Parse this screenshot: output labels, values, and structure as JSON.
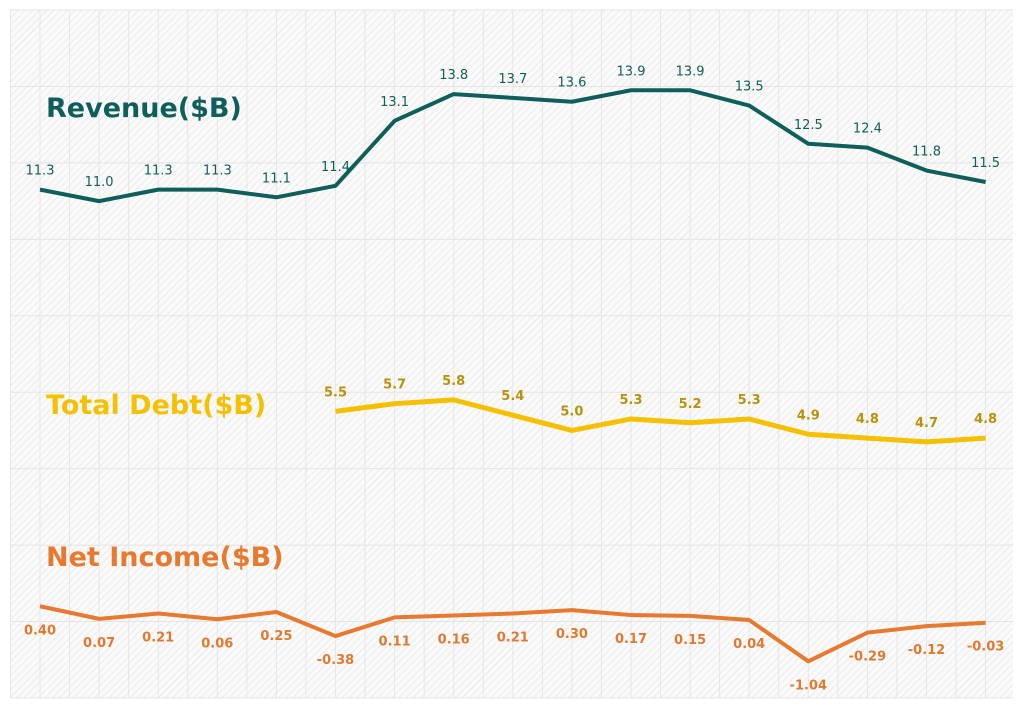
{
  "chart_data": {
    "type": "line",
    "title": "",
    "xlabel": "",
    "ylabel": "",
    "ylim": [
      -2,
      16
    ],
    "grid": true,
    "legend": "inline series labels",
    "x_count": 17,
    "series": [
      {
        "name": "Revenue($B)",
        "color": "#0e5f5b",
        "label_color": "#0e5f5b",
        "start_index": 0,
        "values": [
          11.3,
          11.0,
          11.3,
          11.3,
          11.1,
          11.4,
          13.1,
          13.8,
          13.7,
          13.6,
          13.9,
          13.9,
          13.5,
          12.5,
          12.4,
          11.8,
          11.5
        ],
        "labels": [
          "11.3",
          "11.0",
          "11.3",
          "11.3",
          "11.1",
          "11.4",
          "13.1",
          "13.8",
          "13.7",
          "13.6",
          "13.9",
          "13.9",
          "13.5",
          "12.5",
          "12.4",
          "11.8",
          "11.5"
        ]
      },
      {
        "name": "Total Debt($B)",
        "color": "#f5c000",
        "label_color": "#b8920a",
        "start_index": 5,
        "values": [
          5.5,
          5.7,
          5.8,
          5.4,
          5.0,
          5.3,
          5.2,
          5.3,
          4.9,
          4.8,
          4.7,
          4.8
        ],
        "labels": [
          "5.5",
          "5.7",
          "5.8",
          "5.4",
          "5.0",
          "5.3",
          "5.2",
          "5.3",
          "4.9",
          "4.8",
          "4.7",
          "4.8"
        ]
      },
      {
        "name": "Net Income($B)",
        "color": "#e8792e",
        "label_color": "#e07a30",
        "start_index": 0,
        "values": [
          0.4,
          0.07,
          0.21,
          0.06,
          0.25,
          -0.38,
          0.11,
          0.16,
          0.21,
          0.3,
          0.17,
          0.15,
          0.04,
          -1.04,
          -0.29,
          -0.12,
          -0.03
        ],
        "labels": [
          "0.40",
          "0.07",
          "0.21",
          "0.06",
          "0.25",
          "-0.38",
          "0.11",
          "0.16",
          "0.21",
          "0.30",
          "0.17",
          "0.15",
          "0.04",
          "-1.04",
          "-0.29",
          "-0.12",
          "-0.03"
        ]
      }
    ]
  }
}
